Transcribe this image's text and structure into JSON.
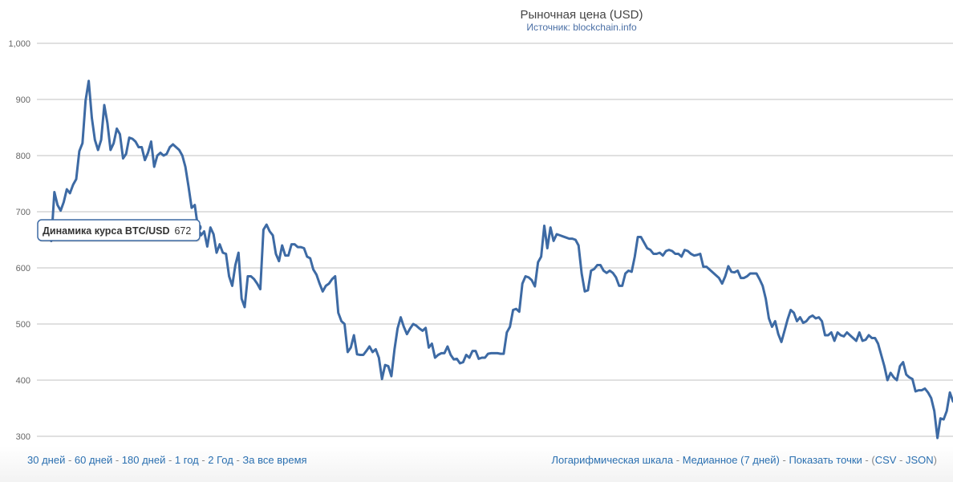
{
  "chart_data": {
    "type": "line",
    "title": "Рыночная цена (USD)",
    "subtitle": "Источник: blockchain.info",
    "xlabel": "",
    "ylabel": "",
    "ylim": [
      300,
      1000
    ],
    "yticks": [
      "300",
      "400",
      "500",
      "600",
      "700",
      "800",
      "900",
      "1,000"
    ],
    "grid": true,
    "line_color": "#3d6aa4",
    "series": [
      {
        "name": "Динамика курса BTC/USD",
        "values": [
          660,
          648,
          735,
          712,
          702,
          717,
          740,
          733,
          748,
          758,
          808,
          822,
          898,
          933,
          867,
          828,
          810,
          828,
          890,
          858,
          810,
          822,
          848,
          838,
          795,
          803,
          832,
          830,
          825,
          815,
          815,
          792,
          805,
          825,
          780,
          800,
          805,
          800,
          803,
          815,
          820,
          815,
          810,
          800,
          780,
          745,
          707,
          712,
          672,
          658,
          665,
          638,
          672,
          660,
          627,
          642,
          627,
          625,
          585,
          568,
          605,
          627,
          545,
          530,
          585,
          585,
          580,
          572,
          562,
          668,
          677,
          665,
          658,
          625,
          612,
          640,
          622,
          622,
          642,
          642,
          637,
          637,
          635,
          620,
          617,
          597,
          588,
          572,
          558,
          568,
          572,
          580,
          585,
          520,
          505,
          500,
          450,
          458,
          480,
          446,
          445,
          445,
          452,
          460,
          450,
          455,
          440,
          402,
          427,
          425,
          407,
          455,
          492,
          512,
          495,
          482,
          492,
          500,
          497,
          492,
          488,
          493,
          458,
          465,
          440,
          445,
          448,
          448,
          460,
          445,
          437,
          438,
          430,
          432,
          445,
          440,
          452,
          452,
          438,
          440,
          440,
          447,
          448,
          448,
          448,
          447,
          447,
          485,
          495,
          525,
          527,
          522,
          572,
          585,
          583,
          578,
          567,
          610,
          620,
          675,
          635,
          672,
          648,
          660,
          658,
          656,
          654,
          652,
          652,
          650,
          640,
          590,
          558,
          560,
          595,
          598,
          605,
          605,
          595,
          591,
          595,
          591,
          583,
          568,
          568,
          590,
          595,
          593,
          620,
          655,
          655,
          645,
          635,
          632,
          625,
          625,
          627,
          622,
          630,
          632,
          630,
          625,
          625,
          620,
          632,
          630,
          625,
          622,
          623,
          625,
          602,
          602,
          597,
          592,
          587,
          582,
          572,
          585,
          603,
          593,
          592,
          595,
          582,
          582,
          585,
          590,
          590,
          590,
          580,
          568,
          545,
          510,
          495,
          505,
          482,
          468,
          488,
          508,
          525,
          520,
          505,
          512,
          502,
          505,
          512,
          515,
          510,
          512,
          505,
          480,
          480,
          485,
          470,
          485,
          480,
          478,
          485,
          480,
          475,
          470,
          485,
          470,
          472,
          480,
          475,
          475,
          465,
          445,
          425,
          400,
          413,
          405,
          400,
          425,
          432,
          410,
          405,
          402,
          380,
          382,
          382,
          385,
          378,
          368,
          345,
          297,
          332,
          330,
          345,
          378,
          362
        ]
      }
    ],
    "tooltip": {
      "series_name": "Динамика курса BTC/USD",
      "value": "672",
      "point_index": 48
    }
  },
  "footer": {
    "left_links": [
      "30 дней",
      "60 дней",
      "180 дней",
      "1 год",
      "2 Год",
      "За все время"
    ],
    "right_links": [
      "Логарифмическая шкала",
      "Медианное (7 дней)",
      "Показать точки"
    ],
    "export_links": [
      "CSV",
      "JSON"
    ]
  }
}
